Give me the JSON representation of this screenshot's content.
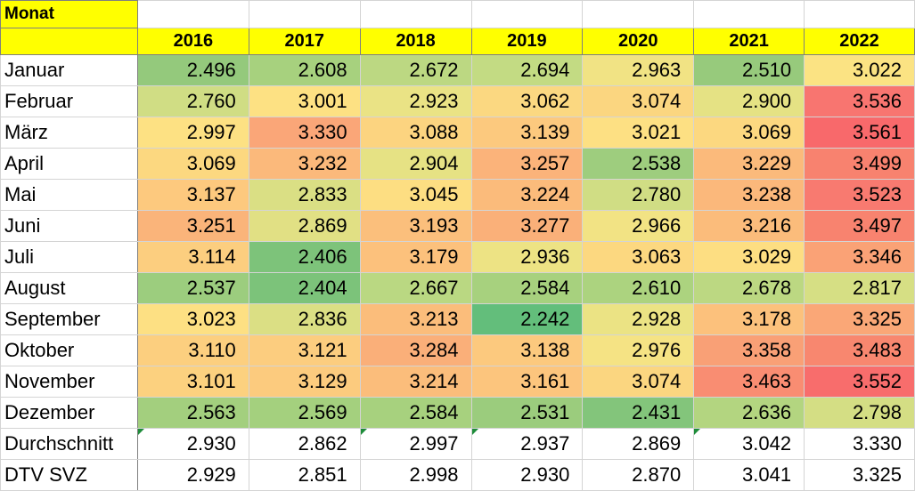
{
  "header": {
    "label": "Monat"
  },
  "years": [
    "2016",
    "2017",
    "2018",
    "2019",
    "2020",
    "2021",
    "2022"
  ],
  "rows": [
    {
      "label": "Januar",
      "values": [
        "2.496",
        "2.608",
        "2.672",
        "2.694",
        "2.963",
        "2.510",
        "3.022"
      ],
      "colors": [
        "#94c97c",
        "#a7d17e",
        "#bcd882",
        "#c3db83",
        "#f1e384",
        "#97ca7c",
        "#fbe383"
      ]
    },
    {
      "label": "Februar",
      "values": [
        "2.760",
        "3.001",
        "2.923",
        "3.062",
        "3.074",
        "2.900",
        "3.536"
      ],
      "colors": [
        "#d0dd84",
        "#fde183",
        "#eae385",
        "#fbd881",
        "#fbd680",
        "#e5e284",
        "#f87570"
      ]
    },
    {
      "label": "März",
      "values": [
        "2.997",
        "3.330",
        "3.088",
        "3.139",
        "3.021",
        "3.069",
        "3.561"
      ],
      "colors": [
        "#fde183",
        "#faa678",
        "#fcd480",
        "#fcc97e",
        "#fde083",
        "#fcd880",
        "#f8696b"
      ]
    },
    {
      "label": "April",
      "values": [
        "3.069",
        "3.232",
        "2.904",
        "3.257",
        "2.538",
        "3.229",
        "3.499"
      ],
      "colors": [
        "#fcd880",
        "#fbb97b",
        "#e6e284",
        "#fbb37a",
        "#9ecd7e",
        "#fbba7b",
        "#f8826f"
      ]
    },
    {
      "label": "Mai",
      "values": [
        "3.137",
        "2.833",
        "3.045",
        "3.224",
        "2.780",
        "3.238",
        "3.523"
      ],
      "colors": [
        "#fdc97e",
        "#dadf84",
        "#fdde82",
        "#fbbb7b",
        "#d0dd84",
        "#fbb87b",
        "#f87a70"
      ]
    },
    {
      "label": "Juni",
      "values": [
        "3.251",
        "2.869",
        "3.193",
        "3.277",
        "2.966",
        "3.216",
        "3.497"
      ],
      "colors": [
        "#fab47a",
        "#e1e084",
        "#fbbf7c",
        "#fab079",
        "#f2e384",
        "#fbbc7b",
        "#f8836f"
      ]
    },
    {
      "label": "Juli",
      "values": [
        "3.114",
        "2.406",
        "3.179",
        "2.936",
        "3.063",
        "3.029",
        "3.346"
      ],
      "colors": [
        "#fcce7f",
        "#7dc37a",
        "#fcc17c",
        "#ede384",
        "#fcd880",
        "#fdde82",
        "#faa276"
      ]
    },
    {
      "label": "August",
      "values": [
        "2.537",
        "2.404",
        "2.667",
        "2.584",
        "2.610",
        "2.678",
        "2.817"
      ],
      "colors": [
        "#9ccd7e",
        "#7cc37a",
        "#bad882",
        "#a7d17e",
        "#acd37f",
        "#bcd882",
        "#d6df84"
      ]
    },
    {
      "label": "September",
      "values": [
        "3.023",
        "2.836",
        "3.213",
        "2.242",
        "2.928",
        "3.178",
        "3.325"
      ],
      "colors": [
        "#fde083",
        "#dbdf84",
        "#fbbd7b",
        "#63be7b",
        "#ebe384",
        "#fcc17c",
        "#faa777"
      ]
    },
    {
      "label": "Oktober",
      "values": [
        "3.110",
        "3.121",
        "3.284",
        "3.138",
        "2.976",
        "3.358",
        "3.483"
      ],
      "colors": [
        "#fccf7f",
        "#fccd7f",
        "#faaf79",
        "#fcc97e",
        "#f5e384",
        "#f9a076",
        "#f8876f"
      ]
    },
    {
      "label": "November",
      "values": [
        "3.101",
        "3.129",
        "3.214",
        "3.161",
        "3.074",
        "3.463",
        "3.552"
      ],
      "colors": [
        "#fcd17f",
        "#fccb7e",
        "#fbbd7b",
        "#fcc57d",
        "#fbd680",
        "#f98d72",
        "#f86d6c"
      ]
    },
    {
      "label": "Dezember",
      "values": [
        "2.563",
        "2.569",
        "2.584",
        "2.531",
        "2.431",
        "2.636",
        "2.798"
      ],
      "colors": [
        "#a3cf7e",
        "#a4d07e",
        "#a7d17e",
        "#9bcc7d",
        "#83c57b",
        "#b3d580",
        "#d4de84"
      ]
    }
  ],
  "summary": [
    {
      "label": "Durchschnitt",
      "values": [
        "2.930",
        "2.862",
        "2.997",
        "2.937",
        "2.869",
        "3.042",
        "3.330"
      ],
      "marker": [
        true,
        false,
        true,
        true,
        false,
        true,
        false
      ]
    },
    {
      "label": "DTV SVZ",
      "values": [
        "2.929",
        "2.851",
        "2.998",
        "2.930",
        "2.870",
        "3.041",
        "3.325"
      ],
      "marker": [
        false,
        false,
        false,
        false,
        false,
        false,
        false
      ]
    }
  ],
  "marker_color": "#1e8c3a"
}
